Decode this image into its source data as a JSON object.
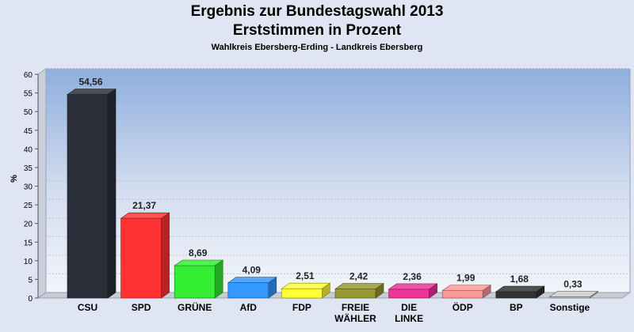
{
  "chart_data": {
    "type": "bar",
    "title": "Ergebnis zur Bundestagswahl 2013",
    "subtitle": "Erststimmen in Prozent",
    "caption": "Wahlkreis Ebersberg-Erding - Landkreis Ebersberg",
    "ylabel": "%",
    "ylim": [
      0,
      60
    ],
    "yticks": [
      0,
      5,
      10,
      15,
      20,
      25,
      30,
      35,
      40,
      45,
      50,
      55,
      60
    ],
    "grid": true,
    "categories": [
      "CSU",
      "SPD",
      "GRÜNE",
      "AfD",
      "FDP",
      "FREIE WÄHLER",
      "DIE LINKE",
      "ÖDP",
      "BP",
      "Sonstige"
    ],
    "category_lines": [
      [
        "CSU"
      ],
      [
        "SPD"
      ],
      [
        "GRÜNE"
      ],
      [
        "AfD"
      ],
      [
        "FDP"
      ],
      [
        "FREIE",
        "WÄHLER"
      ],
      [
        "DIE",
        "LINKE"
      ],
      [
        "ÖDP"
      ],
      [
        "BP"
      ],
      [
        "Sonstige"
      ]
    ],
    "values": [
      54.56,
      21.37,
      8.69,
      4.09,
      2.51,
      2.42,
      2.36,
      1.99,
      1.68,
      0.33
    ],
    "value_labels": [
      "54,56",
      "21,37",
      "8,69",
      "4,09",
      "2,51",
      "2,42",
      "2,36",
      "1,99",
      "1,68",
      "0,33"
    ],
    "colors": [
      "#2b2f3a",
      "#ff3333",
      "#33ee33",
      "#3399ff",
      "#ffff33",
      "#999933",
      "#ee3399",
      "#ff9999",
      "#333333",
      "#cccccc"
    ]
  }
}
